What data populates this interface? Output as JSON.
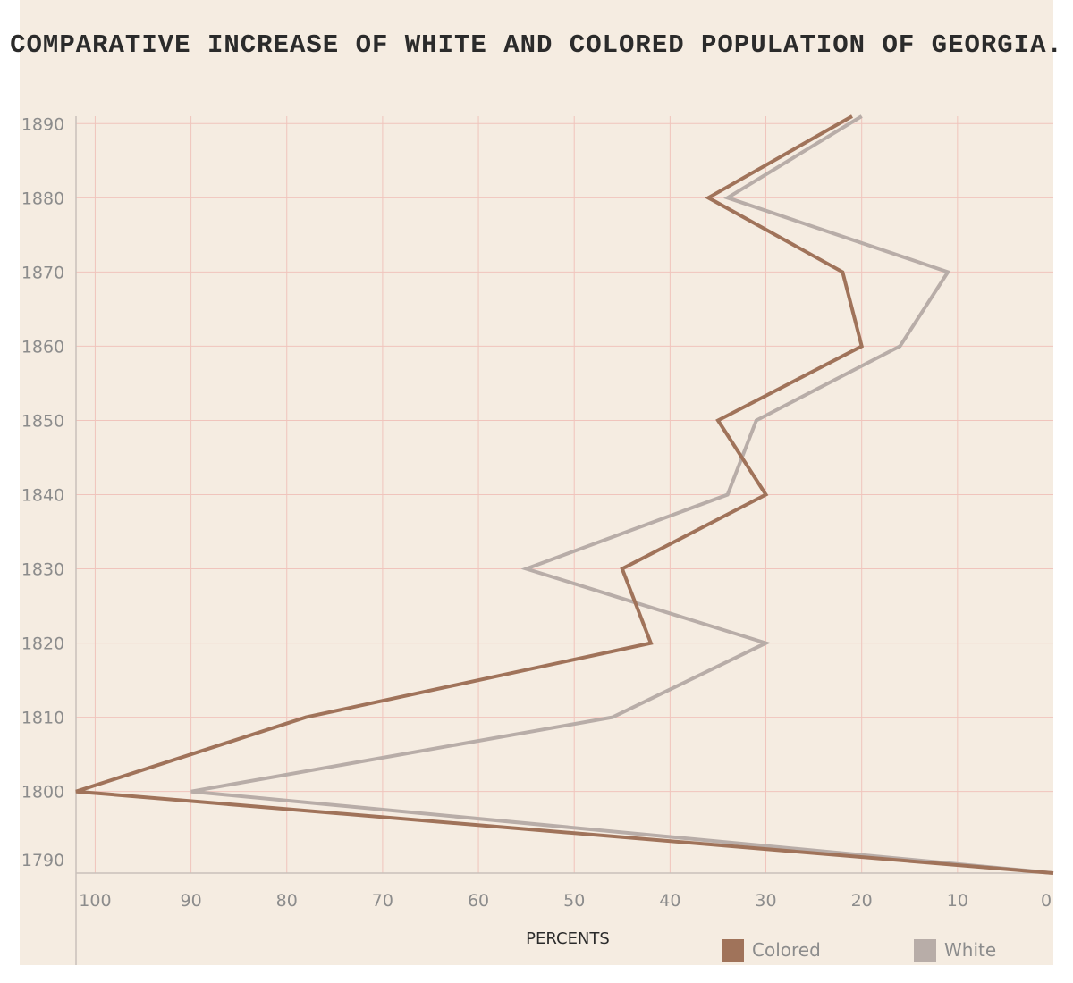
{
  "chart_data": {
    "type": "line",
    "title": "COMPARATIVE INCREASE OF WHITE AND COLORED POPULATION OF GEORGIA.",
    "xlabel": "PERCENTS",
    "ylabel": "",
    "x_ticks": [
      100,
      90,
      80,
      70,
      60,
      50,
      40,
      30,
      20,
      10,
      0
    ],
    "y_ticks": [
      1890,
      1880,
      1870,
      1860,
      1850,
      1840,
      1830,
      1820,
      1810,
      1800,
      1790
    ],
    "xlim": [
      102,
      0
    ],
    "x_reversed": true,
    "ylim": [
      1789,
      1891
    ],
    "grid": true,
    "legend": "bottom-right",
    "series": [
      {
        "name": "Colored",
        "color": "#a0735a",
        "points": [
          [
            0,
            1789
          ],
          [
            102,
            1800
          ],
          [
            78,
            1810
          ],
          [
            42,
            1820
          ],
          [
            45,
            1830
          ],
          [
            30,
            1840
          ],
          [
            35,
            1850
          ],
          [
            20,
            1860
          ],
          [
            22,
            1870
          ],
          [
            36,
            1880
          ],
          [
            21,
            1891
          ]
        ]
      },
      {
        "name": "White",
        "color": "#b8ada8",
        "points": [
          [
            0,
            1789
          ],
          [
            90,
            1800
          ],
          [
            46,
            1810
          ],
          [
            30,
            1820
          ],
          [
            55,
            1830
          ],
          [
            34,
            1840
          ],
          [
            31,
            1850
          ],
          [
            16,
            1860
          ],
          [
            11,
            1870
          ],
          [
            34,
            1880
          ],
          [
            20,
            1891
          ]
        ]
      }
    ]
  }
}
